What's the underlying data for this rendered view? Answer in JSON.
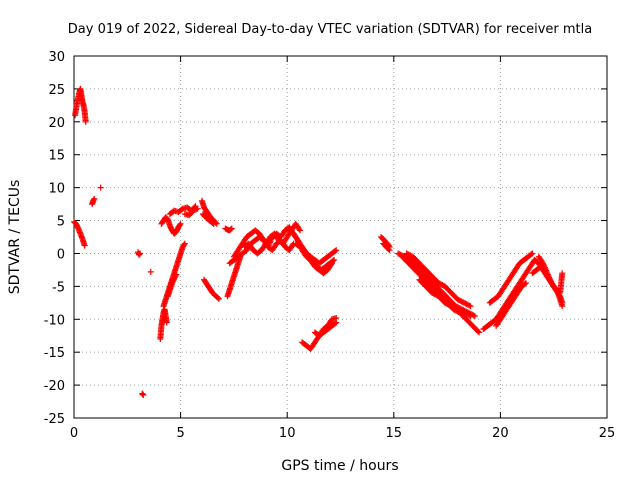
{
  "chart_data": {
    "type": "scatter",
    "title": "Day 019 of 2022, Sidereal Day-to-day VTEC variation (SDTVAR) for receiver mtla",
    "xlabel": "GPS time / hours",
    "ylabel": "SDTVAR / TECUs",
    "xlim": [
      0,
      25
    ],
    "ylim": [
      -25,
      30
    ],
    "xticks": [
      0,
      5,
      10,
      15,
      20,
      25
    ],
    "xtick_labels": [
      "0",
      "5",
      "10",
      "15",
      "20",
      "25"
    ],
    "yticks": [
      -25,
      -20,
      -15,
      -10,
      -5,
      0,
      5,
      10,
      15,
      20,
      25,
      30
    ],
    "ytick_labels": [
      "-25",
      "-20",
      "-15",
      "-10",
      "-5",
      "0",
      "5",
      "10",
      "15",
      "20",
      "25",
      "30"
    ],
    "grid": true,
    "marker": "+",
    "color": "#ff0000",
    "series": [
      {
        "name": "SDTVAR",
        "segments": [
          {
            "x": [
              0.05,
              0.15,
              0.25,
              0.3,
              0.35,
              0.4,
              0.45,
              0.5,
              0.55
            ],
            "y": [
              21,
              23,
              24.5,
              25,
              24,
              23,
              22.5,
              21.5,
              20
            ]
          },
          {
            "x": [
              0.0,
              0.1,
              0.2,
              0.3,
              0.4,
              0.5
            ],
            "y": [
              4.8,
              4.5,
              3.8,
              3.0,
              2.2,
              1.2
            ]
          },
          {
            "x": [
              0.85,
              0.9,
              0.95
            ],
            "y": [
              7.5,
              8.0,
              8.3
            ]
          },
          {
            "x": [
              1.25
            ],
            "y": [
              10
            ]
          },
          {
            "x": [
              3.0,
              3.05,
              3.1
            ],
            "y": [
              0.2,
              -0.2,
              0.0
            ]
          },
          {
            "x": [
              3.2,
              3.25
            ],
            "y": [
              -21.3,
              -21.5
            ]
          },
          {
            "x": [
              3.6
            ],
            "y": [
              -2.8
            ]
          },
          {
            "x": [
              4.05,
              4.1,
              4.15,
              4.2,
              4.25,
              4.3,
              4.35
            ],
            "y": [
              -13,
              -11,
              -10,
              -9,
              -8.5,
              -9.5,
              -10.5
            ]
          },
          {
            "x": [
              4.2,
              4.3,
              4.4,
              4.5,
              4.6,
              4.7,
              4.8,
              4.9,
              5.0,
              5.1,
              5.2
            ],
            "y": [
              -8,
              -7,
              -6,
              -5,
              -4,
              -3,
              -2,
              -1,
              0,
              1,
              1.5
            ]
          },
          {
            "x": [
              4.4,
              4.5,
              4.6,
              4.7,
              4.8
            ],
            "y": [
              -6.5,
              -5.5,
              -4.5,
              -3.8,
              -3.2
            ]
          },
          {
            "x": [
              4.1,
              4.2,
              4.3,
              4.4,
              4.5,
              4.6,
              4.7,
              4.8,
              4.9,
              5.0
            ],
            "y": [
              4.5,
              5.0,
              5.5,
              5.2,
              4.2,
              3.5,
              3.0,
              3.3,
              4.0,
              4.5
            ]
          },
          {
            "x": [
              4.5,
              4.7,
              4.9,
              5.1,
              5.3,
              5.5,
              5.7
            ],
            "y": [
              6.0,
              6.5,
              6.3,
              6.8,
              7.0,
              6.5,
              7.2
            ]
          },
          {
            "x": [
              5.2,
              5.4,
              5.6,
              5.8
            ],
            "y": [
              6.0,
              5.8,
              6.5,
              6.8
            ]
          },
          {
            "x": [
              6.0,
              6.1,
              6.2,
              6.3,
              6.4,
              6.5,
              6.6,
              6.7
            ],
            "y": [
              8.0,
              7.0,
              6.5,
              6.0,
              5.5,
              5.2,
              4.8,
              4.5
            ]
          },
          {
            "x": [
              6.05,
              6.15,
              6.25,
              6.35,
              6.45,
              6.55
            ],
            "y": [
              6.0,
              5.6,
              5.3,
              5.0,
              4.8,
              4.5
            ]
          },
          {
            "x": [
              6.1,
              6.2,
              6.3,
              6.4,
              6.5,
              6.6,
              6.7,
              6.8
            ],
            "y": [
              -4.0,
              -4.5,
              -5.0,
              -5.5,
              -6.0,
              -6.3,
              -6.6,
              -6.9
            ]
          },
          {
            "x": [
              7.1,
              7.2,
              7.3,
              7.4
            ],
            "y": [
              3.8,
              3.6,
              3.5,
              3.8
            ]
          },
          {
            "x": [
              7.2,
              7.3,
              7.4,
              7.5,
              7.6,
              7.7,
              7.8
            ],
            "y": [
              -6.5,
              -5.5,
              -4.5,
              -3.5,
              -2.5,
              -1.5,
              -0.5
            ]
          },
          {
            "x": [
              7.3,
              7.5,
              7.7,
              7.9,
              8.1,
              8.3,
              8.5,
              8.7,
              8.9,
              9.1,
              9.3,
              9.5,
              9.7,
              9.9,
              10.1,
              10.3,
              10.5
            ],
            "y": [
              -1.5,
              -1.0,
              -0.5,
              0.0,
              0.5,
              1.5,
              2.0,
              2.5,
              2.0,
              1.0,
              2.5,
              3.0,
              2.5,
              3.5,
              4.0,
              3.0,
              2.0
            ]
          },
          {
            "x": [
              7.5,
              7.7,
              7.9,
              8.1,
              8.3,
              8.5,
              8.7,
              8.9,
              9.1,
              9.3,
              9.5,
              9.7,
              9.9,
              10.1,
              10.3
            ],
            "y": [
              -0.5,
              0.5,
              1.5,
              2.5,
              3.0,
              3.5,
              3.0,
              2.0,
              1.0,
              0.5,
              1.5,
              2.0,
              1.0,
              0.5,
              1.5
            ]
          },
          {
            "x": [
              8.0,
              8.2,
              8.4,
              8.6,
              8.8,
              9.0,
              9.2,
              9.4,
              9.6,
              9.8,
              10.0,
              10.2,
              10.4,
              10.6
            ],
            "y": [
              1.0,
              1.5,
              0.5,
              0.0,
              0.5,
              1.5,
              2.5,
              3.0,
              2.0,
              1.5,
              2.5,
              3.5,
              4.5,
              3.5
            ]
          },
          {
            "x": [
              10.3,
              10.5,
              10.7,
              10.9,
              11.1,
              11.3,
              11.5,
              11.7,
              11.9,
              12.1,
              12.3
            ],
            "y": [
              3.0,
              2.0,
              1.0,
              0.0,
              -0.5,
              -1.0,
              -1.5,
              -1.0,
              -0.5,
              0.0,
              0.5
            ]
          },
          {
            "x": [
              10.4,
              10.6,
              10.8,
              11.0,
              11.2,
              11.4,
              11.6,
              11.8,
              12.0,
              12.2
            ],
            "y": [
              1.5,
              1.0,
              0.5,
              -0.5,
              -1.5,
              -2.0,
              -2.5,
              -2.0,
              -1.5,
              -1.0
            ]
          },
          {
            "x": [
              10.7,
              10.9,
              11.1,
              11.3,
              11.5,
              11.7,
              11.9,
              12.1
            ],
            "y": [
              0.5,
              -0.5,
              -1.0,
              -2.0,
              -2.5,
              -3.0,
              -2.5,
              -1.5
            ]
          },
          {
            "x": [
              10.7,
              10.9,
              11.1,
              11.3,
              11.5,
              11.7,
              11.9,
              12.1,
              12.3
            ],
            "y": [
              -13.5,
              -14.0,
              -14.5,
              -13.5,
              -12.5,
              -12.0,
              -11.5,
              -11.0,
              -10.5
            ]
          },
          {
            "x": [
              11.3,
              11.5,
              11.7,
              11.9,
              12.1,
              12.3
            ],
            "y": [
              -12.0,
              -12.5,
              -11.5,
              -11.0,
              -10.0,
              -9.8
            ]
          },
          {
            "x": [
              14.4,
              14.5,
              14.6,
              14.7,
              14.8
            ],
            "y": [
              2.5,
              2.2,
              1.8,
              1.5,
              1.0
            ]
          },
          {
            "x": [
              14.5,
              14.6,
              14.7,
              14.8
            ],
            "y": [
              1.5,
              1.2,
              0.8,
              0.5
            ]
          },
          {
            "x": [
              15.2,
              15.5,
              15.8,
              16.1,
              16.4,
              16.7,
              17.0,
              17.3,
              17.6,
              17.9,
              18.2,
              18.5,
              18.8
            ],
            "y": [
              0.0,
              -0.5,
              -1.0,
              -2.0,
              -3.0,
              -4.0,
              -5.0,
              -6.0,
              -7.0,
              -8.0,
              -8.5,
              -9.0,
              -9.5
            ]
          },
          {
            "x": [
              15.4,
              15.7,
              16.0,
              16.3,
              16.6,
              16.9,
              17.2,
              17.5,
              17.8,
              18.1,
              18.4,
              18.7,
              19.0
            ],
            "y": [
              -0.5,
              -1.5,
              -2.5,
              -3.5,
              -4.5,
              -5.5,
              -6.5,
              -7.5,
              -8.5,
              -9.0,
              -10.0,
              -11.0,
              -12.0
            ]
          },
          {
            "x": [
              15.6,
              15.9,
              16.2,
              16.5,
              16.8,
              17.1,
              17.4,
              17.7,
              18.0,
              18.3,
              18.6
            ],
            "y": [
              0.0,
              -0.5,
              -1.5,
              -2.5,
              -3.5,
              -4.5,
              -5.0,
              -6.0,
              -7.0,
              -7.5,
              -8.0
            ]
          },
          {
            "x": [
              16.2,
              16.5,
              16.8,
              17.1,
              17.4,
              17.7,
              18.0,
              18.3,
              18.6
            ],
            "y": [
              -4.0,
              -5.0,
              -6.0,
              -6.5,
              -7.5,
              -8.0,
              -8.5,
              -9.0,
              -9.5
            ]
          },
          {
            "x": [
              19.2,
              19.4,
              19.6,
              19.8,
              20.0,
              20.2,
              20.4,
              20.6,
              20.8,
              21.0,
              21.2,
              21.4,
              21.6
            ],
            "y": [
              -11.5,
              -11.0,
              -10.5,
              -10.0,
              -9.0,
              -8.0,
              -7.0,
              -6.0,
              -5.0,
              -4.0,
              -3.0,
              -2.0,
              -1.0
            ]
          },
          {
            "x": [
              19.5,
              19.7,
              19.9,
              20.1,
              20.3,
              20.5,
              20.7,
              20.9,
              21.1,
              21.3,
              21.5
            ],
            "y": [
              -7.5,
              -7.0,
              -6.5,
              -5.5,
              -4.5,
              -3.5,
              -2.5,
              -1.5,
              -1.0,
              -0.5,
              0.0
            ]
          },
          {
            "x": [
              19.8,
              20.0,
              20.2,
              20.4,
              20.6,
              20.8,
              21.0,
              21.2
            ],
            "y": [
              -11.0,
              -10.0,
              -9.0,
              -8.0,
              -7.0,
              -6.0,
              -5.0,
              -4.5
            ]
          },
          {
            "x": [
              21.6,
              21.8,
              22.0,
              22.2,
              22.4,
              22.6,
              22.8,
              22.9
            ],
            "y": [
              -1.0,
              -1.5,
              -2.5,
              -3.5,
              -4.5,
              -5.5,
              -6.5,
              -7.5
            ]
          },
          {
            "x": [
              21.5,
              21.7,
              21.9,
              22.1,
              22.3,
              22.5,
              22.7,
              22.9
            ],
            "y": [
              -3.0,
              -2.5,
              -2.0,
              -3.0,
              -4.0,
              -5.0,
              -6.0,
              -8.0
            ]
          },
          {
            "x": [
              21.8,
              22.0,
              22.2,
              22.4,
              22.6,
              22.8,
              22.9
            ],
            "y": [
              -0.5,
              -1.5,
              -3.0,
              -4.5,
              -5.5,
              -6.0,
              -3.0
            ]
          }
        ]
      }
    ]
  }
}
